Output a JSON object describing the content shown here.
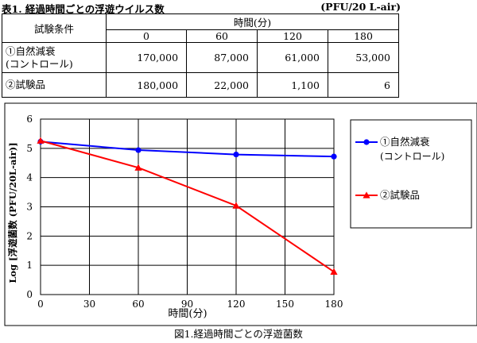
{
  "table": {
    "caption": "表1. 経過時間ごとの浮遊ウイルス数",
    "unit": "(PFU/20 L-air)",
    "condition_header": "試験条件",
    "time_header": "時間(分)",
    "times": [
      "0",
      "60",
      "120",
      "180"
    ],
    "rows": [
      {
        "label_line1": "①自然減衰",
        "label_line2": "(コントロール)",
        "values": [
          "170,000",
          "87,000",
          "61,000",
          "53,000"
        ]
      },
      {
        "label_line1": "②試験品",
        "label_line2": "",
        "values": [
          "180,000",
          "22,000",
          "1,100",
          "6"
        ]
      }
    ]
  },
  "chart_data": {
    "type": "line",
    "x": [
      0,
      60,
      120,
      180
    ],
    "xlabel": "時間(分)",
    "ylabel": "Log [浮遊菌数 (PFU/20L-air)]",
    "xlim": [
      0,
      180
    ],
    "ylim": [
      0,
      6
    ],
    "xticks": [
      "0",
      "30",
      "60",
      "90",
      "120",
      "150",
      "180"
    ],
    "yticks": [
      "0",
      "1",
      "2",
      "3",
      "4",
      "5",
      "6"
    ],
    "grid": true,
    "legend_position": "right",
    "series": [
      {
        "name": "①自然減衰",
        "name_line2": "(コントロール)",
        "color": "#0000ff",
        "marker": "circle",
        "values": [
          5.23,
          4.94,
          4.79,
          4.72
        ]
      },
      {
        "name": "②試験品",
        "name_line2": "",
        "color": "#ff0000",
        "marker": "triangle",
        "values": [
          5.26,
          4.34,
          3.04,
          0.78
        ]
      }
    ],
    "caption": "図1.経過時間ごとの浮遊菌数"
  }
}
